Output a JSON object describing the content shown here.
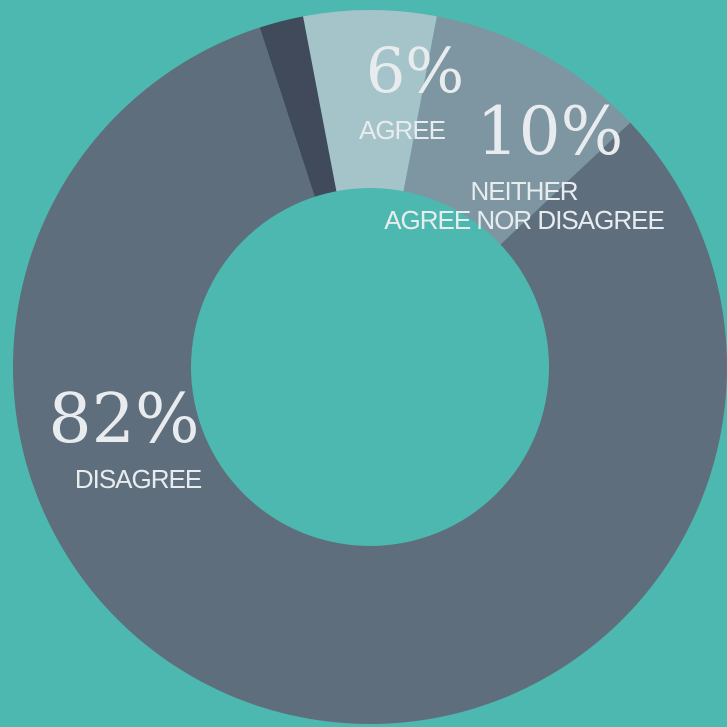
{
  "colors": {
    "background": "#4db8b0",
    "disagree": "#5e6e7d",
    "agree": "#a4c4c9",
    "neither": "#7d96a1",
    "unlabeled": "#414a5b"
  },
  "chart_data": {
    "type": "pie",
    "style": "donut",
    "slices": [
      {
        "key": "unlabeled",
        "value": 2,
        "label": "",
        "pct_text": ""
      },
      {
        "key": "agree",
        "value": 6,
        "label": "AGREE",
        "pct_text": "6%"
      },
      {
        "key": "neither",
        "value": 10,
        "label": "NEITHER AGREE NOR DISAGREE",
        "pct_text": "10%"
      },
      {
        "key": "disagree",
        "value": 82,
        "label": "DISAGREE",
        "pct_text": "82%"
      }
    ],
    "legend": "none"
  }
}
